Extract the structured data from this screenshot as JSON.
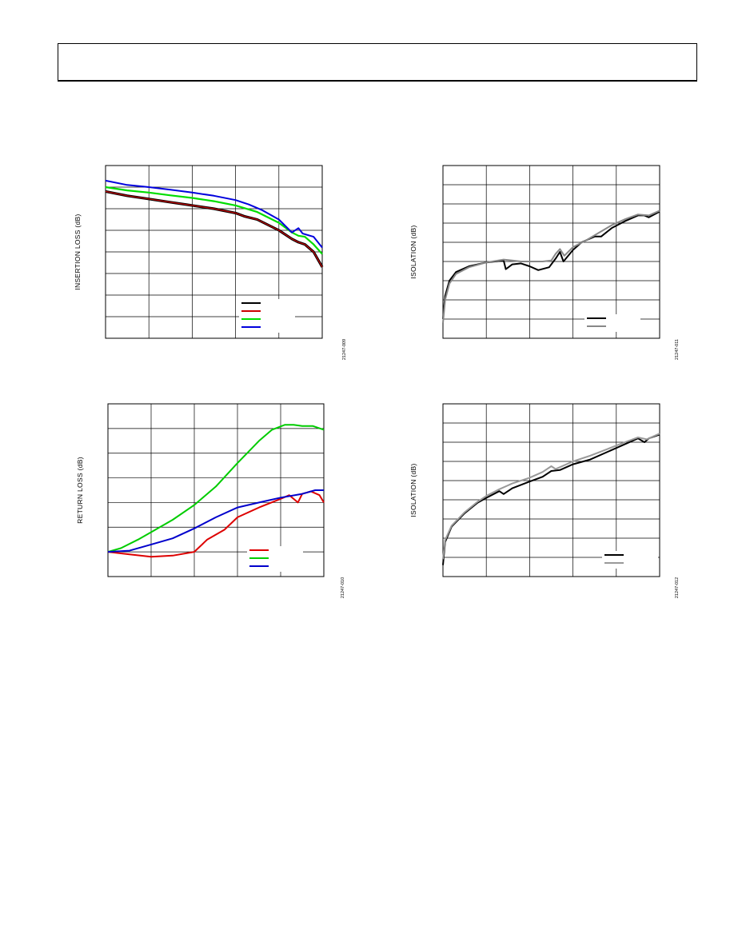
{
  "page": {
    "header_box": ""
  },
  "chart_data": [
    {
      "id": "insertion-loss",
      "type": "line",
      "ylabel": "INSERTION LOSS (dB)",
      "figure_id": "21247-009",
      "xlim": [
        0,
        5
      ],
      "ylim": [
        0,
        8
      ],
      "x_divisions": 5,
      "y_divisions": 8,
      "grid": true,
      "legend_position": "bottom-right",
      "series": [
        {
          "color": "#000000",
          "width": 3.2,
          "points": [
            [
              0,
              6.8
            ],
            [
              0.5,
              6.6
            ],
            [
              1,
              6.45
            ],
            [
              1.5,
              6.3
            ],
            [
              2,
              6.15
            ],
            [
              2.5,
              6.0
            ],
            [
              3,
              5.8
            ],
            [
              3.2,
              5.65
            ],
            [
              3.5,
              5.5
            ],
            [
              4,
              5.0
            ],
            [
              4.3,
              4.6
            ],
            [
              4.45,
              4.45
            ],
            [
              4.6,
              4.35
            ],
            [
              4.8,
              4.0
            ],
            [
              5,
              3.3
            ]
          ]
        },
        {
          "color": "#cc0000",
          "width": 1.2,
          "points": [
            [
              0,
              6.8
            ],
            [
              0.5,
              6.6
            ],
            [
              1,
              6.45
            ],
            [
              1.5,
              6.3
            ],
            [
              2,
              6.15
            ],
            [
              2.5,
              6.0
            ],
            [
              3,
              5.8
            ],
            [
              3.2,
              5.65
            ],
            [
              3.5,
              5.5
            ],
            [
              4,
              5.0
            ],
            [
              4.3,
              4.6
            ],
            [
              4.45,
              4.45
            ],
            [
              4.6,
              4.35
            ],
            [
              4.8,
              4.0
            ],
            [
              5,
              3.3
            ]
          ]
        },
        {
          "color": "#00dd00",
          "width": 2.2,
          "points": [
            [
              0,
              7.0
            ],
            [
              0.5,
              6.85
            ],
            [
              1,
              6.75
            ],
            [
              1.5,
              6.62
            ],
            [
              2,
              6.5
            ],
            [
              2.5,
              6.35
            ],
            [
              3,
              6.15
            ],
            [
              3.5,
              5.85
            ],
            [
              4,
              5.35
            ],
            [
              4.3,
              4.9
            ],
            [
              4.45,
              4.75
            ],
            [
              4.6,
              4.7
            ],
            [
              4.8,
              4.35
            ],
            [
              5,
              3.9
            ]
          ]
        },
        {
          "color": "#0000dd",
          "width": 2.0,
          "points": [
            [
              0,
              7.3
            ],
            [
              0.5,
              7.1
            ],
            [
              1,
              7.0
            ],
            [
              1.5,
              6.88
            ],
            [
              2,
              6.75
            ],
            [
              2.5,
              6.6
            ],
            [
              3,
              6.4
            ],
            [
              3.3,
              6.2
            ],
            [
              3.6,
              5.95
            ],
            [
              4,
              5.5
            ],
            [
              4.3,
              4.9
            ],
            [
              4.45,
              5.1
            ],
            [
              4.55,
              4.85
            ],
            [
              4.8,
              4.7
            ],
            [
              5,
              4.2
            ]
          ]
        }
      ]
    },
    {
      "id": "isolation-top",
      "type": "line",
      "ylabel": "ISOLATION (dB)",
      "figure_id": "21247-011",
      "xlim": [
        0,
        5
      ],
      "ylim": [
        0,
        9
      ],
      "x_divisions": 5,
      "y_divisions": 9,
      "grid": true,
      "legend_position": "bottom-right",
      "series": [
        {
          "color": "#000000",
          "width": 2.0,
          "points": [
            [
              0,
              1.0
            ],
            [
              0.05,
              2.2
            ],
            [
              0.15,
              3.0
            ],
            [
              0.3,
              3.45
            ],
            [
              0.6,
              3.75
            ],
            [
              1,
              3.95
            ],
            [
              1.4,
              4.05
            ],
            [
              1.45,
              3.6
            ],
            [
              1.6,
              3.85
            ],
            [
              1.8,
              3.9
            ],
            [
              2,
              3.75
            ],
            [
              2.2,
              3.55
            ],
            [
              2.45,
              3.7
            ],
            [
              2.6,
              4.15
            ],
            [
              2.7,
              4.5
            ],
            [
              2.78,
              4.0
            ],
            [
              3,
              4.6
            ],
            [
              3.2,
              5.0
            ],
            [
              3.5,
              5.3
            ],
            [
              3.65,
              5.3
            ],
            [
              3.9,
              5.75
            ],
            [
              4.2,
              6.1
            ],
            [
              4.5,
              6.4
            ],
            [
              4.65,
              6.4
            ],
            [
              4.75,
              6.3
            ],
            [
              5,
              6.6
            ]
          ]
        },
        {
          "color": "#888888",
          "width": 2.0,
          "points": [
            [
              0,
              0.8
            ],
            [
              0.05,
              2.0
            ],
            [
              0.15,
              2.85
            ],
            [
              0.3,
              3.35
            ],
            [
              0.6,
              3.7
            ],
            [
              1,
              3.95
            ],
            [
              1.4,
              4.1
            ],
            [
              1.6,
              4.05
            ],
            [
              1.8,
              4.0
            ],
            [
              2,
              4.0
            ],
            [
              2.3,
              4.0
            ],
            [
              2.5,
              4.05
            ],
            [
              2.6,
              4.4
            ],
            [
              2.7,
              4.65
            ],
            [
              2.8,
              4.3
            ],
            [
              3,
              4.75
            ],
            [
              3.3,
              5.1
            ],
            [
              3.6,
              5.5
            ],
            [
              3.9,
              5.9
            ],
            [
              4.2,
              6.2
            ],
            [
              4.5,
              6.45
            ],
            [
              4.75,
              6.4
            ],
            [
              5,
              6.65
            ]
          ]
        }
      ]
    },
    {
      "id": "return-loss",
      "type": "line",
      "ylabel": "RETURN LOSS (dB)",
      "figure_id": "21247-010",
      "xlim": [
        0,
        5
      ],
      "ylim": [
        0,
        7
      ],
      "x_divisions": 5,
      "y_divisions": 7,
      "grid": true,
      "legend_position": "bottom-right",
      "series": [
        {
          "color": "#dd0000",
          "width": 2.0,
          "points": [
            [
              0,
              1.0
            ],
            [
              0.5,
              0.9
            ],
            [
              1,
              0.8
            ],
            [
              1.5,
              0.85
            ],
            [
              2,
              1.0
            ],
            [
              2.3,
              1.5
            ],
            [
              2.7,
              1.9
            ],
            [
              3,
              2.4
            ],
            [
              3.5,
              2.8
            ],
            [
              4,
              3.15
            ],
            [
              4.2,
              3.3
            ],
            [
              4.4,
              3.0
            ],
            [
              4.5,
              3.35
            ],
            [
              4.7,
              3.45
            ],
            [
              4.9,
              3.3
            ],
            [
              5,
              3.0
            ]
          ]
        },
        {
          "color": "#00cc00",
          "width": 2.0,
          "points": [
            [
              0,
              1.0
            ],
            [
              0.3,
              1.15
            ],
            [
              0.7,
              1.5
            ],
            [
              1,
              1.8
            ],
            [
              1.5,
              2.3
            ],
            [
              2,
              2.9
            ],
            [
              2.5,
              3.65
            ],
            [
              3,
              4.6
            ],
            [
              3.5,
              5.5
            ],
            [
              3.8,
              5.95
            ],
            [
              4.1,
              6.15
            ],
            [
              4.3,
              6.15
            ],
            [
              4.5,
              6.1
            ],
            [
              4.75,
              6.1
            ],
            [
              5,
              5.95
            ]
          ]
        },
        {
          "color": "#0000cc",
          "width": 2.0,
          "points": [
            [
              0,
              1.0
            ],
            [
              0.5,
              1.05
            ],
            [
              1,
              1.3
            ],
            [
              1.5,
              1.55
            ],
            [
              2,
              1.95
            ],
            [
              2.5,
              2.4
            ],
            [
              3,
              2.8
            ],
            [
              3.5,
              3.0
            ],
            [
              4,
              3.2
            ],
            [
              4.5,
              3.35
            ],
            [
              4.8,
              3.5
            ],
            [
              5,
              3.5
            ]
          ]
        }
      ]
    },
    {
      "id": "isolation-bottom",
      "type": "line",
      "ylabel": "ISOLATION (dB)",
      "figure_id": "21247-012",
      "xlim": [
        0,
        5
      ],
      "ylim": [
        0,
        9
      ],
      "x_divisions": 5,
      "y_divisions": 9,
      "grid": true,
      "legend_position": "bottom-right",
      "series": [
        {
          "color": "#000000",
          "width": 2.0,
          "points": [
            [
              0,
              0.6
            ],
            [
              0.05,
              1.8
            ],
            [
              0.2,
              2.6
            ],
            [
              0.5,
              3.3
            ],
            [
              0.8,
              3.85
            ],
            [
              1,
              4.1
            ],
            [
              1.3,
              4.45
            ],
            [
              1.4,
              4.3
            ],
            [
              1.6,
              4.6
            ],
            [
              2,
              4.95
            ],
            [
              2.3,
              5.2
            ],
            [
              2.5,
              5.5
            ],
            [
              2.7,
              5.55
            ],
            [
              3,
              5.85
            ],
            [
              3.4,
              6.1
            ],
            [
              3.8,
              6.5
            ],
            [
              4.2,
              6.9
            ],
            [
              4.5,
              7.2
            ],
            [
              4.65,
              7.0
            ],
            [
              4.75,
              7.2
            ],
            [
              5,
              7.4
            ]
          ]
        },
        {
          "color": "#999999",
          "width": 2.0,
          "points": [
            [
              0,
              0.9
            ],
            [
              0.05,
              1.9
            ],
            [
              0.2,
              2.65
            ],
            [
              0.5,
              3.35
            ],
            [
              0.8,
              3.9
            ],
            [
              1,
              4.2
            ],
            [
              1.3,
              4.55
            ],
            [
              1.6,
              4.85
            ],
            [
              2,
              5.15
            ],
            [
              2.3,
              5.45
            ],
            [
              2.5,
              5.75
            ],
            [
              2.6,
              5.6
            ],
            [
              3,
              6.0
            ],
            [
              3.4,
              6.3
            ],
            [
              3.8,
              6.65
            ],
            [
              4.2,
              7.0
            ],
            [
              4.5,
              7.25
            ],
            [
              4.7,
              7.15
            ],
            [
              5,
              7.45
            ]
          ]
        }
      ]
    }
  ]
}
